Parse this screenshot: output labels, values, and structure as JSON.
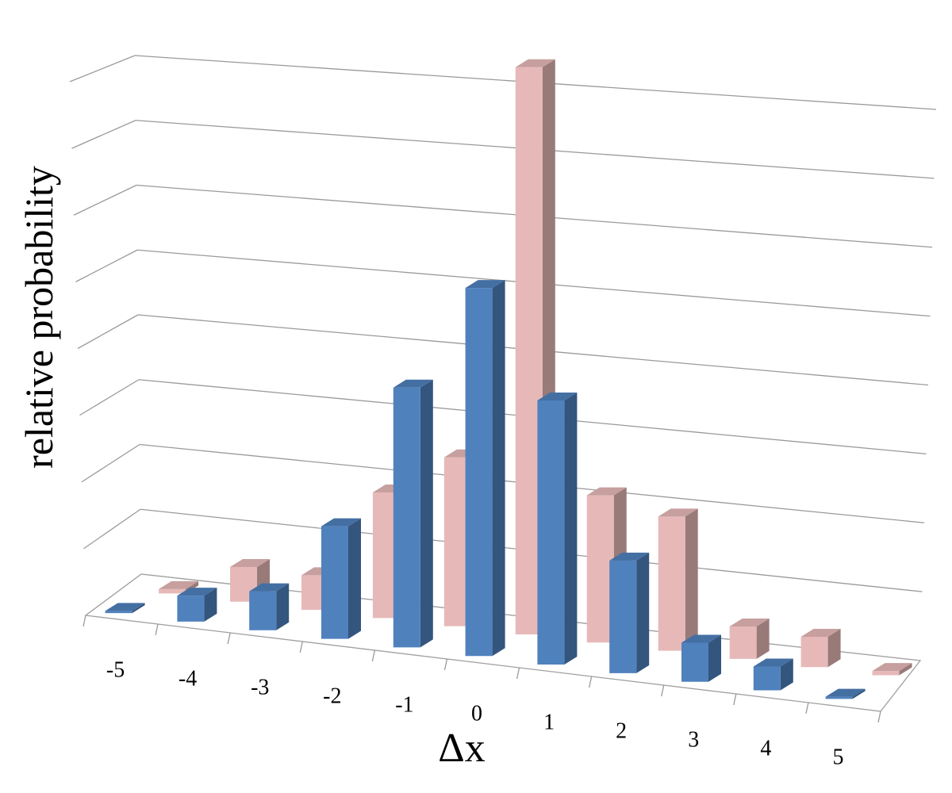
{
  "chart_data": {
    "type": "bar",
    "style": "3d-clustered-columns",
    "categories": [
      "-5",
      "-4",
      "-3",
      "-2",
      "-1",
      "0",
      "1",
      "2",
      "3",
      "4",
      "5"
    ],
    "series": [
      {
        "values": [
          0.1,
          1.2,
          1.8,
          5.2,
          12.0,
          17.0,
          12.2,
          5.2,
          1.8,
          1.1,
          0.1
        ],
        "color": "#4f81bd"
      },
      {
        "values": [
          0.2,
          1.6,
          1.6,
          5.8,
          7.8,
          26.2,
          6.8,
          6.2,
          1.5,
          1.4,
          0.2
        ],
        "color": "#e6b9b8"
      }
    ],
    "xlabel": "Δx",
    "ylabel": "relative probability",
    "ylim": [
      0,
      28
    ],
    "grid": true,
    "legend": "none"
  }
}
